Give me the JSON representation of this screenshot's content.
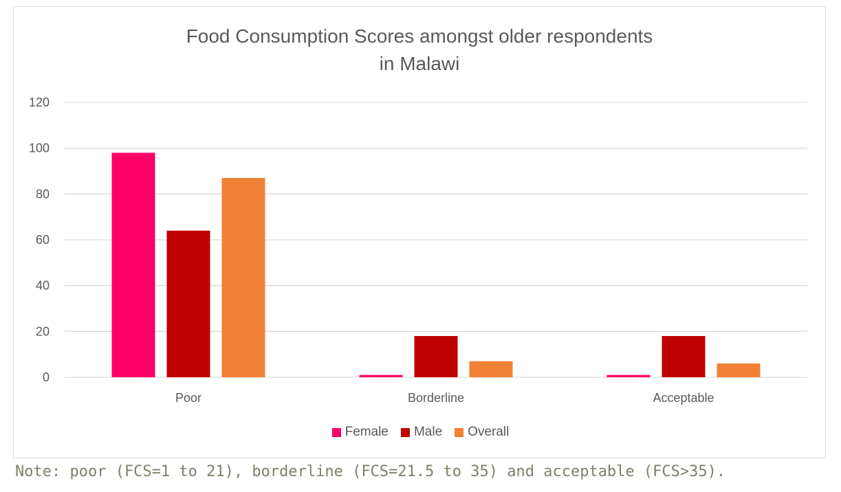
{
  "chart_data": {
    "type": "bar",
    "title_lines": [
      "Food Consumption Scores amongst older respondents",
      "in Malawi"
    ],
    "categories": [
      "Poor",
      "Borderline",
      "Acceptable"
    ],
    "series": [
      {
        "name": "Female",
        "values": [
          98,
          1,
          1
        ],
        "color": "#ff0066"
      },
      {
        "name": "Male",
        "values": [
          64,
          18,
          18
        ],
        "color": "#c00000"
      },
      {
        "name": "Overall",
        "values": [
          87,
          7,
          6
        ],
        "color": "#f08034"
      }
    ],
    "ylim": [
      0,
      120
    ],
    "yticks": [
      0,
      20,
      40,
      60,
      80,
      100,
      120
    ],
    "grid": true,
    "legend_position": "bottom",
    "xlabel": "",
    "ylabel": ""
  },
  "note": "Note: poor (FCS=1 to 21), borderline (FCS=21.5 to 35) and acceptable (FCS>35)."
}
